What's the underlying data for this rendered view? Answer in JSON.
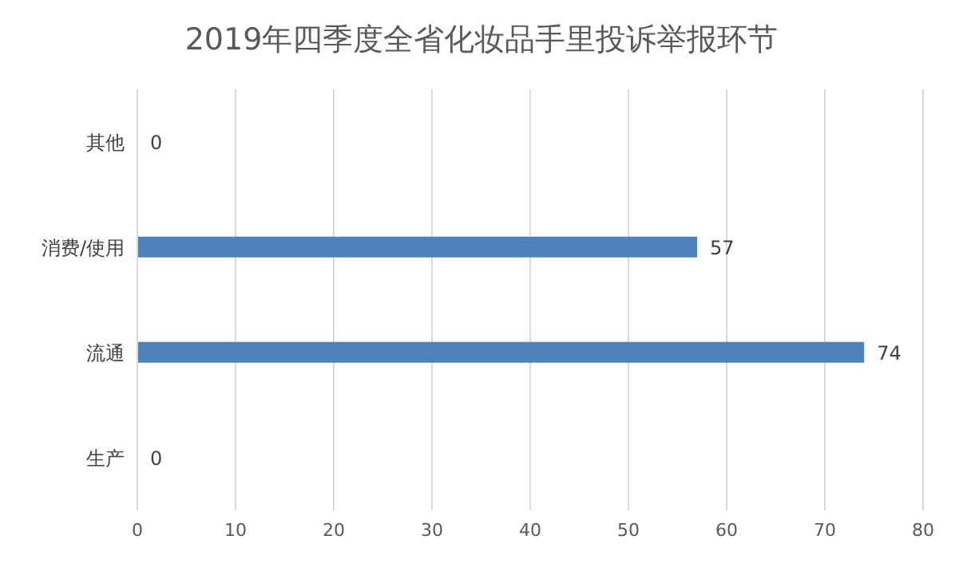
{
  "chart_data": {
    "type": "bar",
    "orientation": "horizontal",
    "title": "2019年四季度全省化妆品手里投诉举报环节",
    "categories": [
      "其他",
      "消费/使用",
      "流通",
      "生产"
    ],
    "values": [
      0,
      57,
      74,
      0
    ],
    "color": "#4f81bd",
    "xlim": [
      0,
      80
    ],
    "xticks": [
      0,
      10,
      20,
      30,
      40,
      50,
      60,
      70,
      80
    ],
    "grid": "x",
    "data_labels": true
  }
}
